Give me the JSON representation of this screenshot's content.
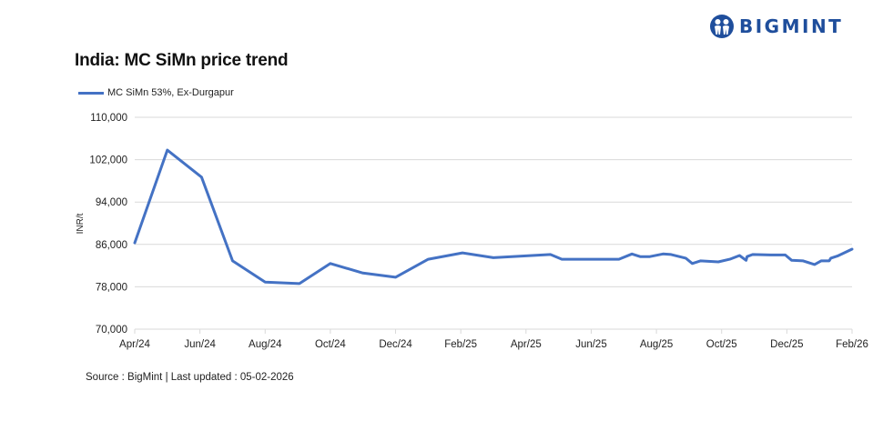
{
  "brand": {
    "name": "BIGMINT",
    "logo_icon": "people-circle-icon",
    "color": "#1f4e9c"
  },
  "title": "India: MC SiMn price trend",
  "legend": {
    "items": [
      {
        "label": "MC SiMn 53%, Ex-Durgapur",
        "color": "#4472c4"
      }
    ]
  },
  "axes": {
    "ylabel": "INR/t",
    "yticks": [
      "110,000",
      "102,000",
      "94,000",
      "86,000",
      "78,000",
      "70,000"
    ],
    "xticks": [
      "Apr/24",
      "Jun/24",
      "Aug/24",
      "Oct/24",
      "Dec/24",
      "Feb/25",
      "Apr/25",
      "Jun/25",
      "Aug/25",
      "Oct/25",
      "Dec/25",
      "Feb/26"
    ]
  },
  "footer": {
    "source": "Source : BigMint | Last updated : 05-02-2026"
  },
  "chart_data": {
    "type": "line",
    "title": "India: MC SiMn price trend",
    "xlabel": "",
    "ylabel": "INR/t",
    "ylim": [
      70000,
      110000
    ],
    "yticks": [
      70000,
      78000,
      86000,
      94000,
      102000,
      110000
    ],
    "xlim": [
      "Apr/24",
      "Feb/26"
    ],
    "x_tick_labels": [
      "Apr/24",
      "Jun/24",
      "Aug/24",
      "Oct/24",
      "Dec/24",
      "Feb/25",
      "Apr/25",
      "Jun/25",
      "Aug/25",
      "Oct/25",
      "Dec/25",
      "Feb/26"
    ],
    "grid": "horizontal",
    "legend_position": "top-left",
    "series": [
      {
        "name": "MC SiMn 53%, Ex-Durgapur",
        "color": "#4472c4",
        "x_months": [
          0,
          1,
          2.05,
          3,
          4,
          5.05,
          6,
          7,
          8,
          9,
          10.05,
          11,
          12.75,
          13.1,
          14.85,
          15.25,
          15.5,
          15.8,
          16.2,
          16.45,
          16.9,
          17.1,
          17.35,
          17.9,
          18.25,
          18.55,
          18.75,
          18.78,
          18.95,
          19.5,
          19.95,
          20.15,
          20.5,
          20.85,
          21.05,
          21.3,
          21.35,
          21.55,
          22.0
        ],
        "values": [
          86300,
          103800,
          98700,
          82900,
          78900,
          78600,
          82400,
          80600,
          79800,
          83200,
          84400,
          83500,
          84100,
          83200,
          83200,
          84200,
          83700,
          83700,
          84200,
          84100,
          83400,
          82400,
          82900,
          82700,
          83200,
          83900,
          83000,
          83700,
          84100,
          84000,
          84000,
          83000,
          82900,
          82200,
          82900,
          82900,
          83400,
          83800,
          85100
        ]
      }
    ]
  }
}
